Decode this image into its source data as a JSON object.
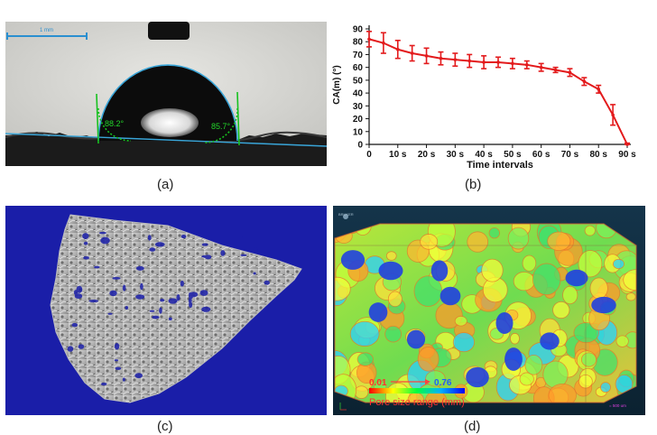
{
  "panel_a": {
    "scale_label": "1 mm",
    "angle_left": "88.2°",
    "angle_right": "85.7°",
    "caption": "(a)"
  },
  "panel_b": {
    "caption": "(b)"
  },
  "chart_data": {
    "type": "line",
    "xlabel": "Time intervals",
    "ylabel": "CA(m) (°)",
    "x": [
      "0",
      "5",
      "10",
      "15",
      "20",
      "25",
      "30",
      "35",
      "40",
      "45",
      "50",
      "55",
      "60",
      "65",
      "70",
      "75",
      "80",
      "85",
      "90"
    ],
    "tick_labels_x": [
      "0",
      "10 s",
      "20 s",
      "30 s",
      "40 s",
      "50 s",
      "60 s",
      "70 s",
      "80 s",
      "90 s"
    ],
    "tick_labels_y": [
      "0",
      "10",
      "20",
      "30",
      "40",
      "50",
      "60",
      "70",
      "80",
      "90"
    ],
    "ylim": [
      0,
      90
    ],
    "xlim": [
      0,
      90
    ],
    "series": [
      {
        "values": [
          82,
          79,
          74,
          71,
          69,
          67,
          66,
          65,
          64,
          64,
          63,
          62,
          60,
          58,
          56,
          49,
          43,
          23,
          0
        ],
        "errors": [
          6,
          8,
          7,
          6,
          6,
          5,
          5,
          5,
          5,
          4,
          4,
          3,
          3,
          2,
          3,
          3,
          3,
          8,
          1
        ],
        "color": "#e31a1c"
      }
    ],
    "grid": false
  },
  "panel_c": {
    "caption": "(c)",
    "background": "#1a1ea8"
  },
  "panel_d": {
    "logo": "BRUKER",
    "range_min": "0.01",
    "range_max": "0.76",
    "range_label": "Pore size range (mm)",
    "scale_label": "= 500 um",
    "caption": "(d)"
  }
}
